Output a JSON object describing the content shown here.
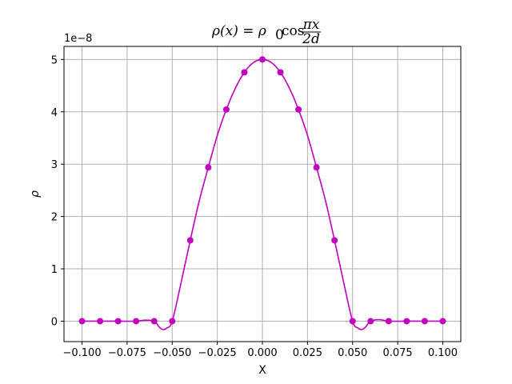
{
  "chart_data": {
    "type": "line",
    "title": "ρ(x) = ρ₀cos πx/2d",
    "title_parts": {
      "lhs": "ρ(x) = ρ",
      "sub": "0",
      "func": "cos",
      "frac_num": "πx",
      "frac_den": "2d"
    },
    "xlabel": "X",
    "ylabel": "ρ",
    "y_offset_label": "1e−8",
    "xlim": [
      -0.11,
      0.11
    ],
    "ylim": [
      -3.9e-09,
      5.25e-08
    ],
    "xticks": [
      -0.1,
      -0.075,
      -0.05,
      -0.025,
      0.0,
      0.025,
      0.05,
      0.075,
      0.1
    ],
    "xtick_labels": [
      "−0.100",
      "−0.075",
      "−0.050",
      "−0.025",
      "0.000",
      "0.025",
      "0.050",
      "0.075",
      "0.100"
    ],
    "yticks": [
      0,
      1e-08,
      2e-08,
      3e-08,
      4e-08,
      5e-08
    ],
    "ytick_labels": [
      "0",
      "1",
      "2",
      "3",
      "4",
      "5"
    ],
    "grid": true,
    "color": "#bf00bf",
    "series": [
      {
        "kind": "points",
        "x": [
          -0.1,
          -0.09,
          -0.08,
          -0.07,
          -0.06,
          -0.05,
          -0.04,
          -0.03,
          -0.02,
          -0.01,
          0.0,
          0.01,
          0.02,
          0.03,
          0.04,
          0.05,
          0.06,
          0.07,
          0.08,
          0.09,
          0.1
        ],
        "y": [
          0,
          0,
          0,
          0,
          0,
          0,
          1.545e-08,
          2.939e-08,
          4.045e-08,
          4.755e-08,
          5e-08,
          4.755e-08,
          4.045e-08,
          2.939e-08,
          1.545e-08,
          0,
          0,
          0,
          0,
          0,
          0
        ]
      },
      {
        "kind": "interpolated-curve",
        "x": [
          -0.1,
          -0.09,
          -0.08,
          -0.07,
          -0.065,
          -0.06,
          -0.057,
          -0.055,
          -0.053,
          -0.05,
          -0.045,
          -0.04,
          -0.035,
          -0.03,
          -0.025,
          -0.02,
          -0.015,
          -0.01,
          -0.005,
          0.0,
          0.005,
          0.01,
          0.015,
          0.02,
          0.025,
          0.03,
          0.035,
          0.04,
          0.045,
          0.05,
          0.053,
          0.055,
          0.057,
          0.06,
          0.065,
          0.07,
          0.08,
          0.09,
          0.1
        ],
        "y": [
          0,
          0,
          0,
          0,
          2e-10,
          0,
          -1.2e-09,
          -1.6e-09,
          -1.3e-09,
          0,
          7.5e-09,
          1.545e-08,
          2.3e-08,
          2.939e-08,
          3.55e-08,
          4.045e-08,
          4.45e-08,
          4.755e-08,
          4.94e-08,
          5e-08,
          4.94e-08,
          4.755e-08,
          4.45e-08,
          4.045e-08,
          3.55e-08,
          2.939e-08,
          2.3e-08,
          1.545e-08,
          7.5e-09,
          0,
          -1.3e-09,
          -1.6e-09,
          -1.2e-09,
          0,
          3e-10,
          0,
          0,
          0,
          0
        ]
      }
    ]
  }
}
